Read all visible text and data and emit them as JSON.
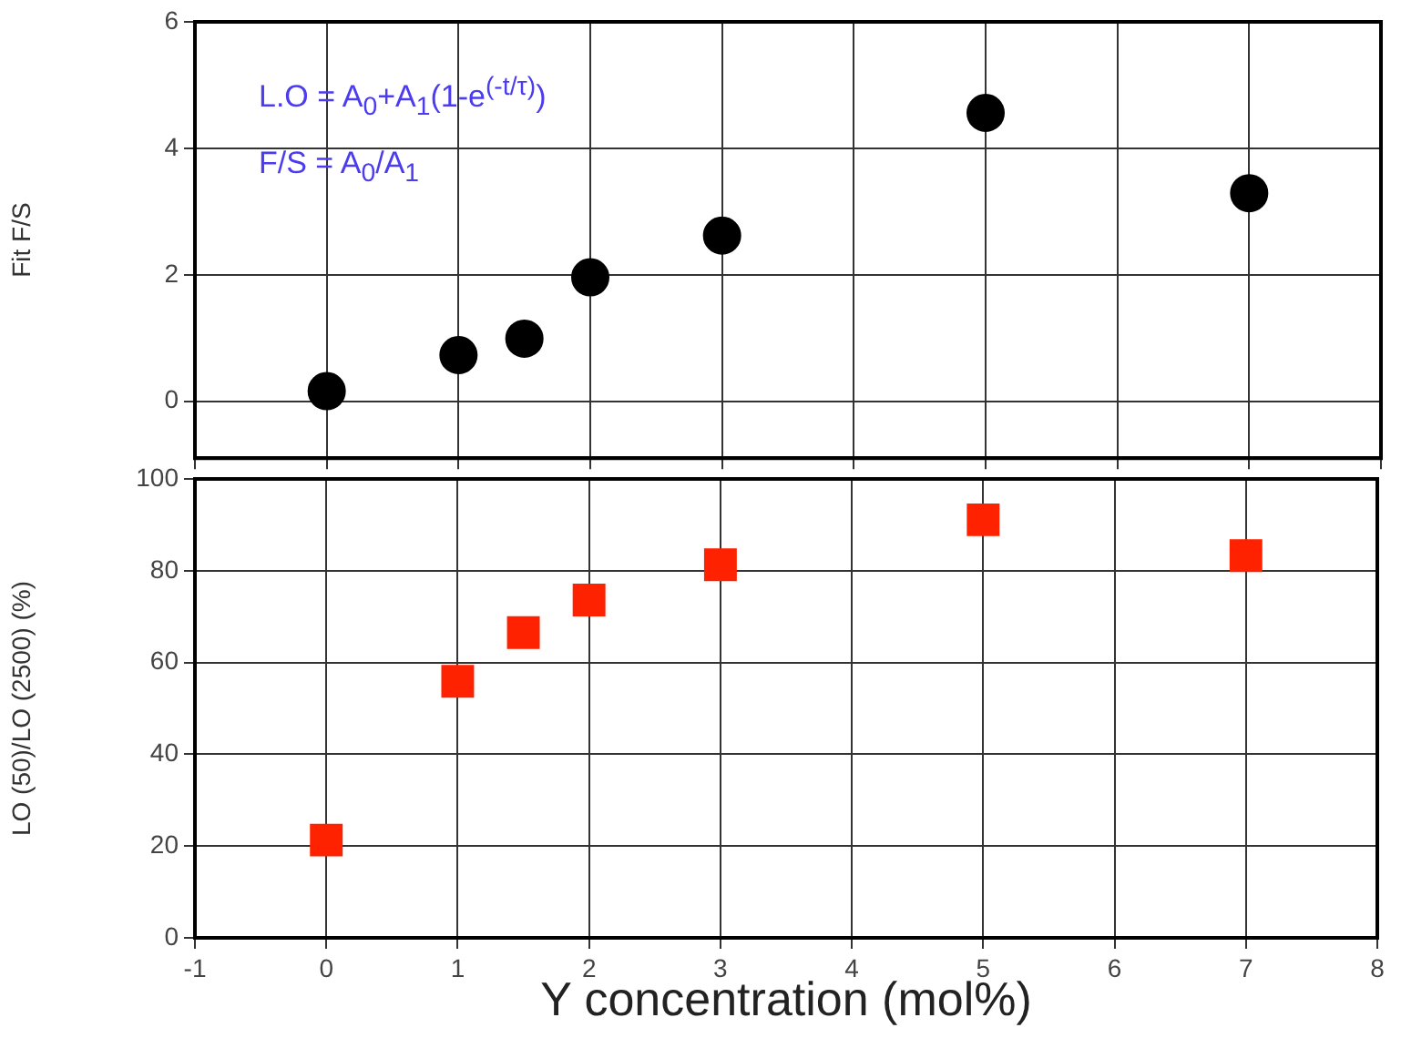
{
  "chart_data": [
    {
      "type": "scatter",
      "x": [
        0,
        1,
        1.5,
        2,
        3,
        5,
        7
      ],
      "xlim": [
        -1,
        8
      ],
      "xticks": [
        -1,
        0,
        1,
        2,
        3,
        4,
        5,
        6,
        7,
        8
      ],
      "ylim": [
        -0.9,
        6
      ],
      "yticks": [
        0,
        2,
        4,
        6
      ],
      "ylabel": "Fit F/S",
      "grid": true,
      "marker": "circle",
      "tick_labels": "y",
      "series": [
        {
          "color": "#000000",
          "values": [
            0.16,
            0.73,
            0.99,
            1.96,
            2.62,
            4.56,
            3.29
          ]
        }
      ],
      "annotations": [
        "L.O = A$_{0}$+A$_{1}$(1-e$^{(-t/τ)}$)",
        "F/S = A$_{0}$/A$_{1}$"
      ]
    },
    {
      "type": "scatter",
      "x": [
        0,
        1,
        1.5,
        2,
        3,
        5,
        7
      ],
      "xlim": [
        -1,
        8
      ],
      "xticks": [
        -1,
        0,
        1,
        2,
        3,
        4,
        5,
        6,
        7,
        8
      ],
      "ylim": [
        0,
        100
      ],
      "yticks": [
        0,
        20,
        40,
        60,
        80,
        100
      ],
      "xlabel": "Y concentration (mol%)",
      "ylabel": "LO (50)/LO (2500) (%)",
      "grid": true,
      "marker": "square",
      "series": [
        {
          "color": "#ff2200",
          "values": [
            21.3,
            55.9,
            66.5,
            73.6,
            81.3,
            91.1,
            83.3
          ]
        }
      ]
    }
  ]
}
